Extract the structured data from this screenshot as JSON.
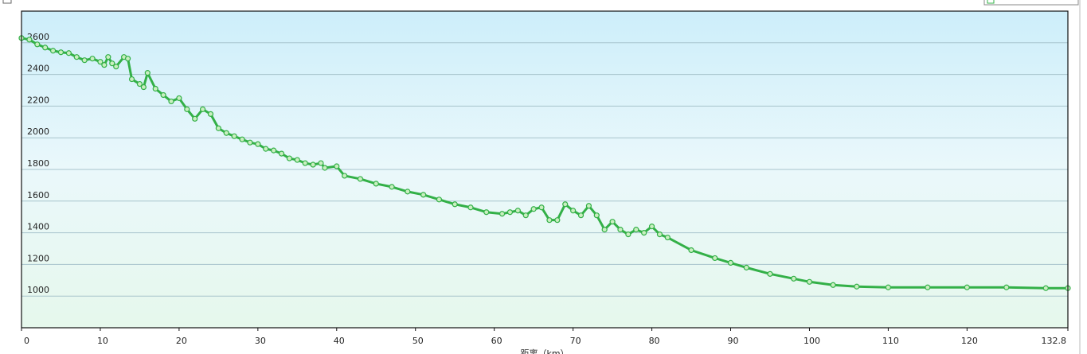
{
  "chart_data": {
    "type": "line",
    "x_label": "距离（km）",
    "x": [
      0,
      1,
      2,
      3,
      4,
      5,
      6,
      7,
      8,
      9,
      10,
      10.5,
      11,
      11.5,
      12,
      13,
      13.5,
      14,
      15,
      15.5,
      16,
      17,
      18,
      19,
      20,
      21,
      22,
      23,
      24,
      25,
      26,
      27,
      28,
      29,
      30,
      31,
      32,
      33,
      34,
      35,
      36,
      37,
      38,
      38.5,
      40,
      41,
      43,
      45,
      47,
      49,
      51,
      53,
      55,
      57,
      59,
      61,
      62,
      63,
      64,
      65,
      66,
      67,
      68,
      69,
      70,
      71,
      72,
      73,
      74,
      75,
      76,
      77,
      78,
      79,
      80,
      81,
      82,
      85,
      88,
      90,
      92,
      95,
      98,
      100,
      103,
      106,
      110,
      115,
      120,
      125,
      130,
      132.8
    ],
    "series": [
      {
        "color": "#33b047",
        "values": [
          2630,
          2620,
          2590,
          2570,
          2550,
          2540,
          2535,
          2510,
          2490,
          2500,
          2480,
          2460,
          2510,
          2470,
          2450,
          2510,
          2500,
          2370,
          2340,
          2320,
          2410,
          2310,
          2270,
          2230,
          2250,
          2180,
          2120,
          2180,
          2150,
          2060,
          2030,
          2010,
          1990,
          1970,
          1960,
          1930,
          1920,
          1900,
          1870,
          1860,
          1840,
          1830,
          1840,
          1810,
          1820,
          1760,
          1740,
          1710,
          1690,
          1660,
          1640,
          1610,
          1580,
          1560,
          1530,
          1520,
          1530,
          1540,
          1510,
          1550,
          1560,
          1480,
          1480,
          1580,
          1540,
          1510,
          1570,
          1510,
          1420,
          1470,
          1420,
          1390,
          1420,
          1400,
          1440,
          1390,
          1370,
          1290,
          1240,
          1210,
          1180,
          1140,
          1110,
          1090,
          1070,
          1060,
          1055,
          1055,
          1055,
          1055,
          1050,
          1050
        ]
      }
    ],
    "xlim": [
      0,
      132.8
    ],
    "xticks": [
      0,
      10,
      20,
      30,
      40,
      50,
      60,
      70,
      80,
      90,
      100,
      110,
      120,
      132.8
    ],
    "ylim": [
      800,
      2800
    ],
    "yticks": [
      1000,
      1200,
      1400,
      1600,
      1800,
      2000,
      2200,
      2400,
      2600
    ],
    "grid": true
  }
}
